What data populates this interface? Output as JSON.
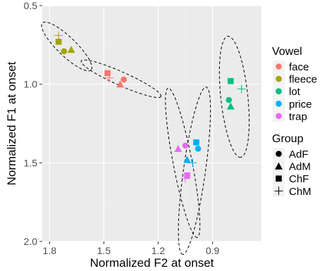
{
  "colors": {
    "panel_bg": "#EBEBEB",
    "grid_major": "#FFFFFF",
    "grid_minor": "#F3F3F3",
    "text": "#4D4D4D",
    "title": "#000000"
  },
  "chart_data": {
    "type": "scatter",
    "title": "",
    "xlabel": "Normalized F2 at onset",
    "ylabel": "Normalized F1 at onset",
    "x_reversed": true,
    "y_reversed": true,
    "xlim": [
      1.84,
      0.63
    ],
    "ylim": [
      0.5,
      2.0
    ],
    "x_ticks": [
      1.8,
      1.5,
      1.2,
      0.9
    ],
    "x_tick_labels": [
      "1.8",
      "1.5",
      "1.2",
      "0.9"
    ],
    "y_ticks": [
      0.5,
      1.0,
      1.5,
      2.0
    ],
    "y_tick_labels": [
      "0.5",
      "1.0",
      "1.5",
      "2.0"
    ],
    "grid": true,
    "legend_position": "right",
    "legends": [
      {
        "title": "Vowel",
        "kind": "color",
        "entries": [
          {
            "label": "face",
            "color": "#F8766D"
          },
          {
            "label": "fleece",
            "color": "#A3A500"
          },
          {
            "label": "lot",
            "color": "#00BF7D"
          },
          {
            "label": "price",
            "color": "#00B0F6"
          },
          {
            "label": "trap",
            "color": "#E76BF3"
          }
        ]
      },
      {
        "title": "Group",
        "kind": "shape",
        "entries": [
          {
            "label": "AdF",
            "shape": "circle"
          },
          {
            "label": "AdM",
            "shape": "triangle"
          },
          {
            "label": "ChF",
            "shape": "square"
          },
          {
            "label": "ChM",
            "shape": "plus"
          }
        ]
      }
    ],
    "points": [
      {
        "vowel": "fleece",
        "group": "ChM",
        "x": 1.75,
        "y": 0.69
      },
      {
        "vowel": "fleece",
        "group": "ChF",
        "x": 1.75,
        "y": 0.73
      },
      {
        "vowel": "fleece",
        "group": "AdF",
        "x": 1.72,
        "y": 0.79
      },
      {
        "vowel": "fleece",
        "group": "AdM",
        "x": 1.68,
        "y": 0.78
      },
      {
        "vowel": "face",
        "group": "ChF",
        "x": 1.48,
        "y": 0.93
      },
      {
        "vowel": "face",
        "group": "ChM",
        "x": 1.47,
        "y": 0.96
      },
      {
        "vowel": "face",
        "group": "AdF",
        "x": 1.39,
        "y": 0.97
      },
      {
        "vowel": "face",
        "group": "AdM",
        "x": 1.41,
        "y": 1.0
      },
      {
        "vowel": "lot",
        "group": "ChF",
        "x": 0.8,
        "y": 0.98
      },
      {
        "vowel": "lot",
        "group": "ChM",
        "x": 0.74,
        "y": 1.03
      },
      {
        "vowel": "lot",
        "group": "AdF",
        "x": 0.81,
        "y": 1.1
      },
      {
        "vowel": "lot",
        "group": "AdM",
        "x": 0.8,
        "y": 1.14
      },
      {
        "vowel": "trap",
        "group": "AdM",
        "x": 1.09,
        "y": 1.41
      },
      {
        "vowel": "trap",
        "group": "AdF",
        "x": 1.05,
        "y": 1.39
      },
      {
        "vowel": "trap",
        "group": "ChF",
        "x": 1.04,
        "y": 1.58
      },
      {
        "vowel": "trap",
        "group": "ChM",
        "x": 1.05,
        "y": 1.6
      },
      {
        "vowel": "price",
        "group": "ChF",
        "x": 0.99,
        "y": 1.37
      },
      {
        "vowel": "price",
        "group": "AdF",
        "x": 0.98,
        "y": 1.41
      },
      {
        "vowel": "price",
        "group": "AdM",
        "x": 1.04,
        "y": 1.48
      },
      {
        "vowel": "price",
        "group": "ChM",
        "x": 1.01,
        "y": 1.5
      }
    ],
    "ellipses": [
      {
        "group": "fleece-trend",
        "cx": 1.705,
        "cy": 0.76,
        "rx": 0.2,
        "ry": 0.055,
        "angle_deg": 44
      },
      {
        "group": "face-trend",
        "cx": 1.405,
        "cy": 0.965,
        "rx": 0.258,
        "ry": 0.04,
        "angle_deg": 24
      },
      {
        "group": "lot-trend",
        "cx": 0.78,
        "cy": 1.08,
        "rx": 0.36,
        "ry": 0.08,
        "angle_deg": 84
      },
      {
        "group": "trap-trend",
        "cx": 1.065,
        "cy": 1.5,
        "rx": 0.45,
        "ry": 0.056,
        "angle_deg": 79
      },
      {
        "group": "price-trend",
        "cx": 1.0,
        "cy": 1.55,
        "rx": 0.5,
        "ry": 0.065,
        "angle_deg": 98
      }
    ]
  }
}
